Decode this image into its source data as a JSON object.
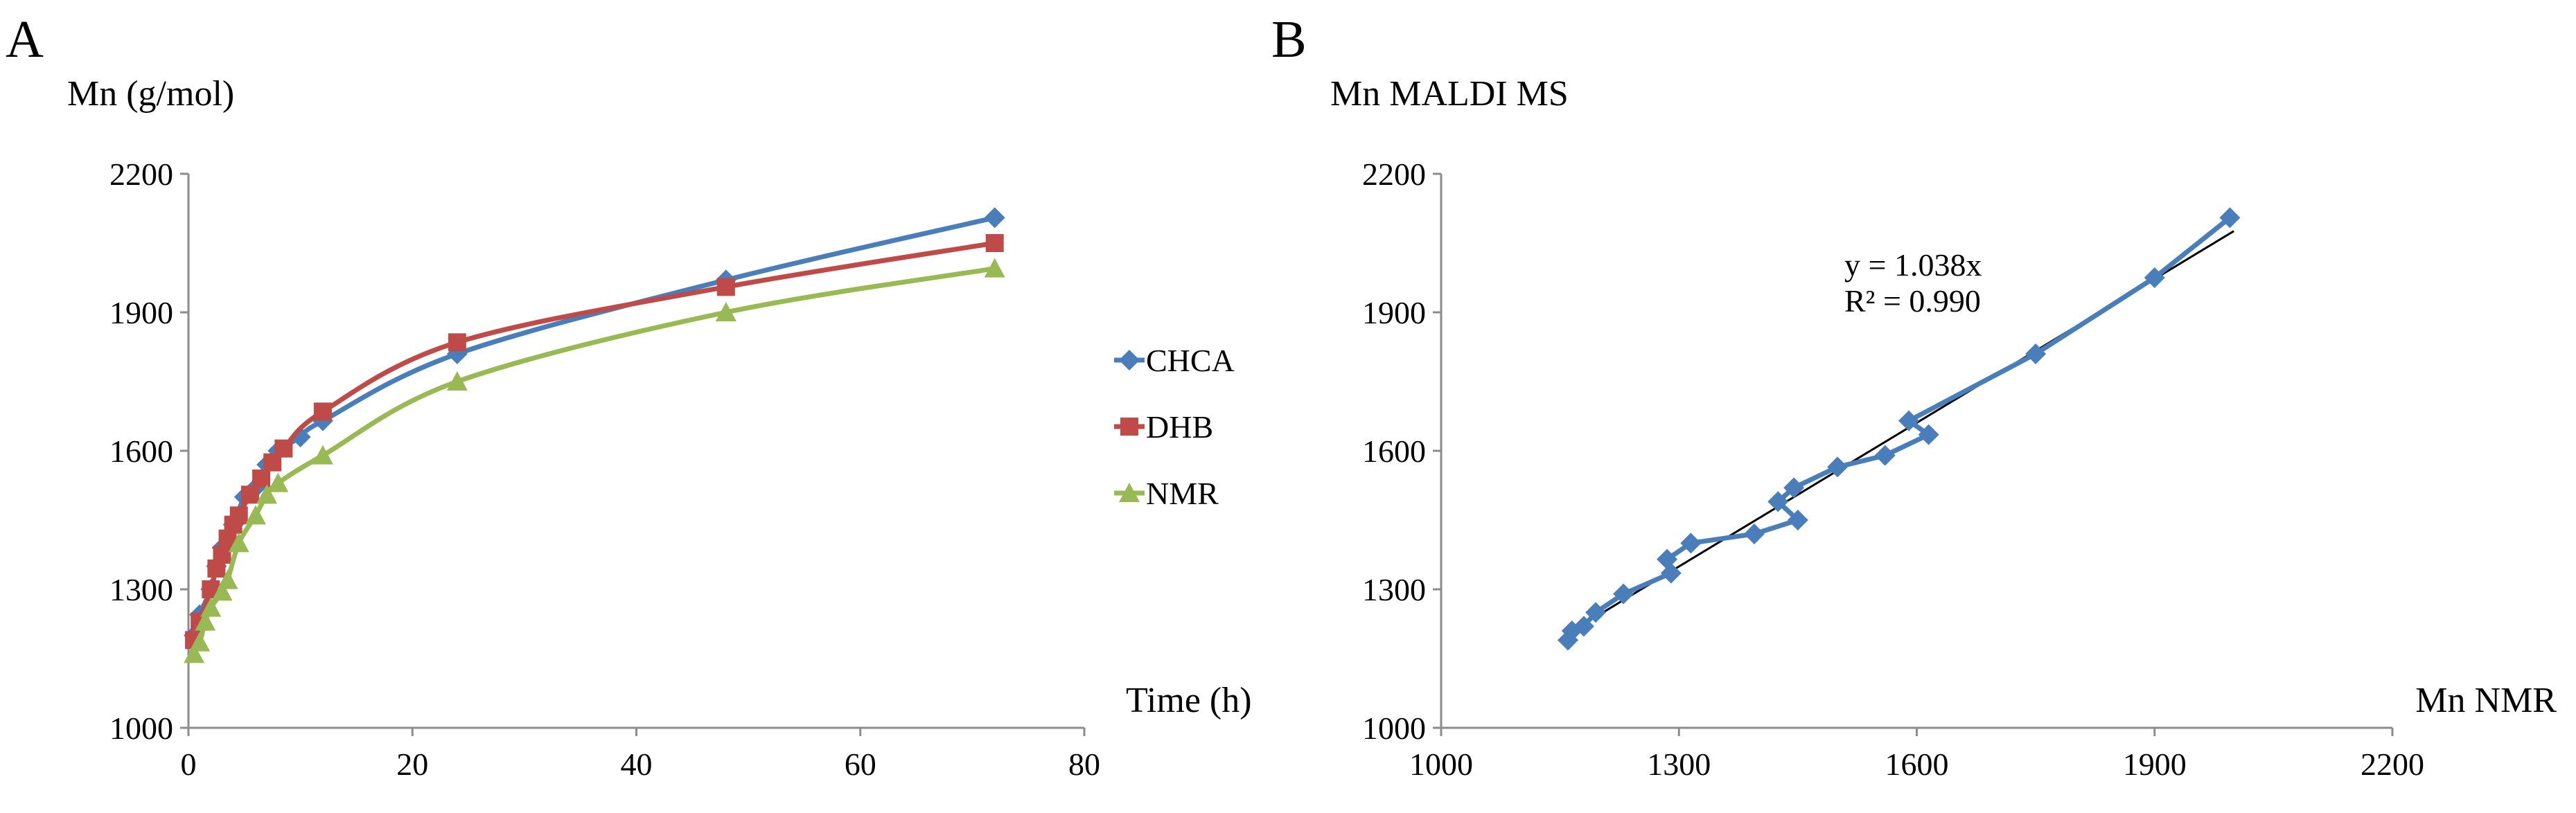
{
  "chart_data": [
    {
      "panel": "A",
      "type": "line",
      "ylabel": "Mn (g/mol)",
      "xlabel": "Time (h)",
      "xlim": [
        0,
        80
      ],
      "ylim": [
        1000,
        2200
      ],
      "x_ticks": [
        "0",
        "20",
        "40",
        "60",
        "80"
      ],
      "y_ticks": [
        "1000",
        "1300",
        "1600",
        "1900",
        "2200"
      ],
      "legend_position": "right",
      "series": [
        {
          "name": "CHCA",
          "color": "#4a7ebb",
          "marker": "diamond",
          "points": [
            [
              0.5,
              1200
            ],
            [
              1,
              1245
            ],
            [
              2,
              1300
            ],
            [
              2.5,
              1350
            ],
            [
              3,
              1390
            ],
            [
              4,
              1440
            ],
            [
              5,
              1500
            ],
            [
              6,
              1520
            ],
            [
              7,
              1570
            ],
            [
              8,
              1600
            ],
            [
              10,
              1630
            ],
            [
              12,
              1665
            ],
            [
              24,
              1810
            ],
            [
              48,
              1970
            ],
            [
              72,
              2105
            ]
          ]
        },
        {
          "name": "DHB",
          "color": "#be4b48",
          "marker": "square",
          "points": [
            [
              0.5,
              1190
            ],
            [
              1,
              1230
            ],
            [
              2,
              1300
            ],
            [
              2.5,
              1345
            ],
            [
              3,
              1375
            ],
            [
              3.5,
              1410
            ],
            [
              4,
              1440
            ],
            [
              4.5,
              1460
            ],
            [
              5.5,
              1505
            ],
            [
              6.5,
              1540
            ],
            [
              7.5,
              1575
            ],
            [
              8.5,
              1605
            ],
            [
              12,
              1685
            ],
            [
              24,
              1835
            ],
            [
              48,
              1955
            ],
            [
              72,
              2050
            ]
          ]
        },
        {
          "name": "NMR",
          "color": "#98b954",
          "marker": "triangle",
          "points": [
            [
              0.5,
              1160
            ],
            [
              1,
              1185
            ],
            [
              1.5,
              1230
            ],
            [
              2,
              1260
            ],
            [
              3,
              1295
            ],
            [
              3.5,
              1320
            ],
            [
              4.5,
              1400
            ],
            [
              6,
              1460
            ],
            [
              7,
              1505
            ],
            [
              8,
              1530
            ],
            [
              12,
              1590
            ],
            [
              24,
              1750
            ],
            [
              48,
              1900
            ],
            [
              72,
              1995
            ]
          ]
        }
      ]
    },
    {
      "panel": "B",
      "type": "scatter",
      "ylabel": "Mn MALDI MS",
      "xlabel": "Mn NMR",
      "xlim": [
        1000,
        2200
      ],
      "ylim": [
        1000,
        2200
      ],
      "x_ticks": [
        "1000",
        "1300",
        "1600",
        "1900",
        "2200"
      ],
      "y_ticks": [
        "1000",
        "1300",
        "1600",
        "1900",
        "2200"
      ],
      "annotation": [
        "y = 1.038x",
        "R² = 0.990"
      ],
      "series": [
        {
          "color": "#4a7ebb",
          "marker": "diamond",
          "points": [
            [
              1160,
              1190
            ],
            [
              1165,
              1210
            ],
            [
              1180,
              1220
            ],
            [
              1195,
              1250
            ],
            [
              1230,
              1290
            ],
            [
              1290,
              1335
            ],
            [
              1285,
              1365
            ],
            [
              1315,
              1400
            ],
            [
              1395,
              1420
            ],
            [
              1450,
              1450
            ],
            [
              1425,
              1490
            ],
            [
              1445,
              1520
            ],
            [
              1500,
              1565
            ],
            [
              1560,
              1590
            ],
            [
              1615,
              1635
            ],
            [
              1590,
              1665
            ],
            [
              1750,
              1810
            ],
            [
              1900,
              1975
            ],
            [
              1995,
              2105
            ]
          ]
        }
      ],
      "trendline": {
        "slope": 1.038,
        "x_range": [
          1158,
          2000
        ],
        "color": "#000000"
      }
    }
  ]
}
